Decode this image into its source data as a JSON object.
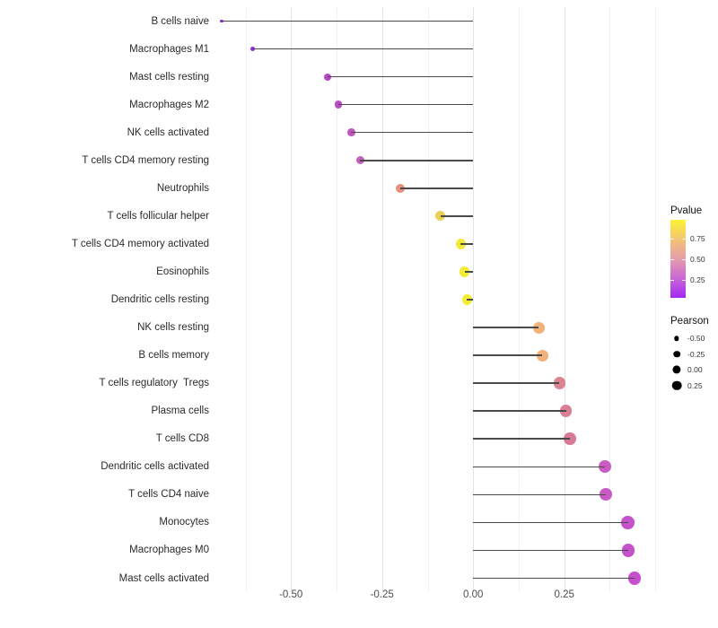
{
  "chart_data": {
    "type": "scatter",
    "subtype": "lollipop",
    "title": "",
    "xlabel": "",
    "ylabel": "",
    "xlim": [
      -0.7075,
      0.5365
    ],
    "grid": "vertical only, minor lines every 0.125, white background",
    "stem_color": "#4a4a4a",
    "x_ticks": [
      {
        "label": "-0.50",
        "value": -0.5
      },
      {
        "label": "-0.25",
        "value": -0.25
      },
      {
        "label": "0.00",
        "value": 0.0
      },
      {
        "label": "0.25",
        "value": 0.25
      }
    ],
    "series": [
      {
        "label": "B cells naive",
        "pearson": -0.69,
        "color": "#8824e0"
      },
      {
        "label": "Macrophages M1",
        "pearson": -0.605,
        "color": "#8d2ae2"
      },
      {
        "label": "Mast cells resting",
        "pearson": -0.4,
        "color": "#b946c9"
      },
      {
        "label": "Macrophages M2",
        "pearson": -0.37,
        "color": "#bc4bc7"
      },
      {
        "label": "NK cells activated",
        "pearson": -0.335,
        "color": "#c256c1"
      },
      {
        "label": "T cells CD4 memory resting",
        "pearson": -0.31,
        "color": "#c75fba"
      },
      {
        "label": "Neutrophils",
        "pearson": -0.2,
        "color": "#e69179"
      },
      {
        "label": "T cells follicular helper",
        "pearson": -0.09,
        "color": "#eccf55"
      },
      {
        "label": "T cells CD4 memory activated",
        "pearson": -0.034,
        "color": "#f3e93b"
      },
      {
        "label": "Eosinophils",
        "pearson": -0.024,
        "color": "#f4eb37"
      },
      {
        "label": "Dendritic cells resting",
        "pearson": -0.017,
        "color": "#f4ec35"
      },
      {
        "label": "NK cells resting",
        "pearson": 0.18,
        "color": "#f2b37a"
      },
      {
        "label": "B cells memory",
        "pearson": 0.19,
        "color": "#f1b178"
      },
      {
        "label": "T cells regulatory  Tregs",
        "pearson": 0.237,
        "color": "#dc8494"
      },
      {
        "label": "Plasma cells",
        "pearson": 0.255,
        "color": "#da7e93"
      },
      {
        "label": "T cells CD8",
        "pearson": 0.265,
        "color": "#d87a96"
      },
      {
        "label": "Dendritic cells activated",
        "pearson": 0.362,
        "color": "#c85cc3"
      },
      {
        "label": "T cells CD4 naive",
        "pearson": 0.365,
        "color": "#c85ac4"
      },
      {
        "label": "Monocytes",
        "pearson": 0.425,
        "color": "#c551cb"
      },
      {
        "label": "Macrophages M0",
        "pearson": 0.426,
        "color": "#c551cb"
      },
      {
        "label": "Mast cells activated",
        "pearson": 0.443,
        "color": "#c64fce"
      }
    ],
    "legends": {
      "pvalue": {
        "title": "Pvalue",
        "position": "right",
        "tick_labels": [
          "0.75",
          "0.50",
          "0.25"
        ],
        "tick_values": [
          0.75,
          0.5,
          0.25
        ],
        "bar_value_range_top_to_bottom": [
          0.97,
          0.04
        ],
        "gradient_top_to_bottom": [
          "#fcf334",
          "#f2c573",
          "#e69cab",
          "#c967d6",
          "#a527f2"
        ]
      },
      "pearson": {
        "title": "Pearson",
        "position": "right",
        "dot_color": "#000000",
        "items": [
          {
            "label": "-0.50",
            "value": -0.5
          },
          {
            "label": "-0.25",
            "value": -0.25
          },
          {
            "label": "0.00",
            "value": 0.0
          },
          {
            "label": "0.25",
            "value": 0.25
          }
        ]
      }
    }
  }
}
